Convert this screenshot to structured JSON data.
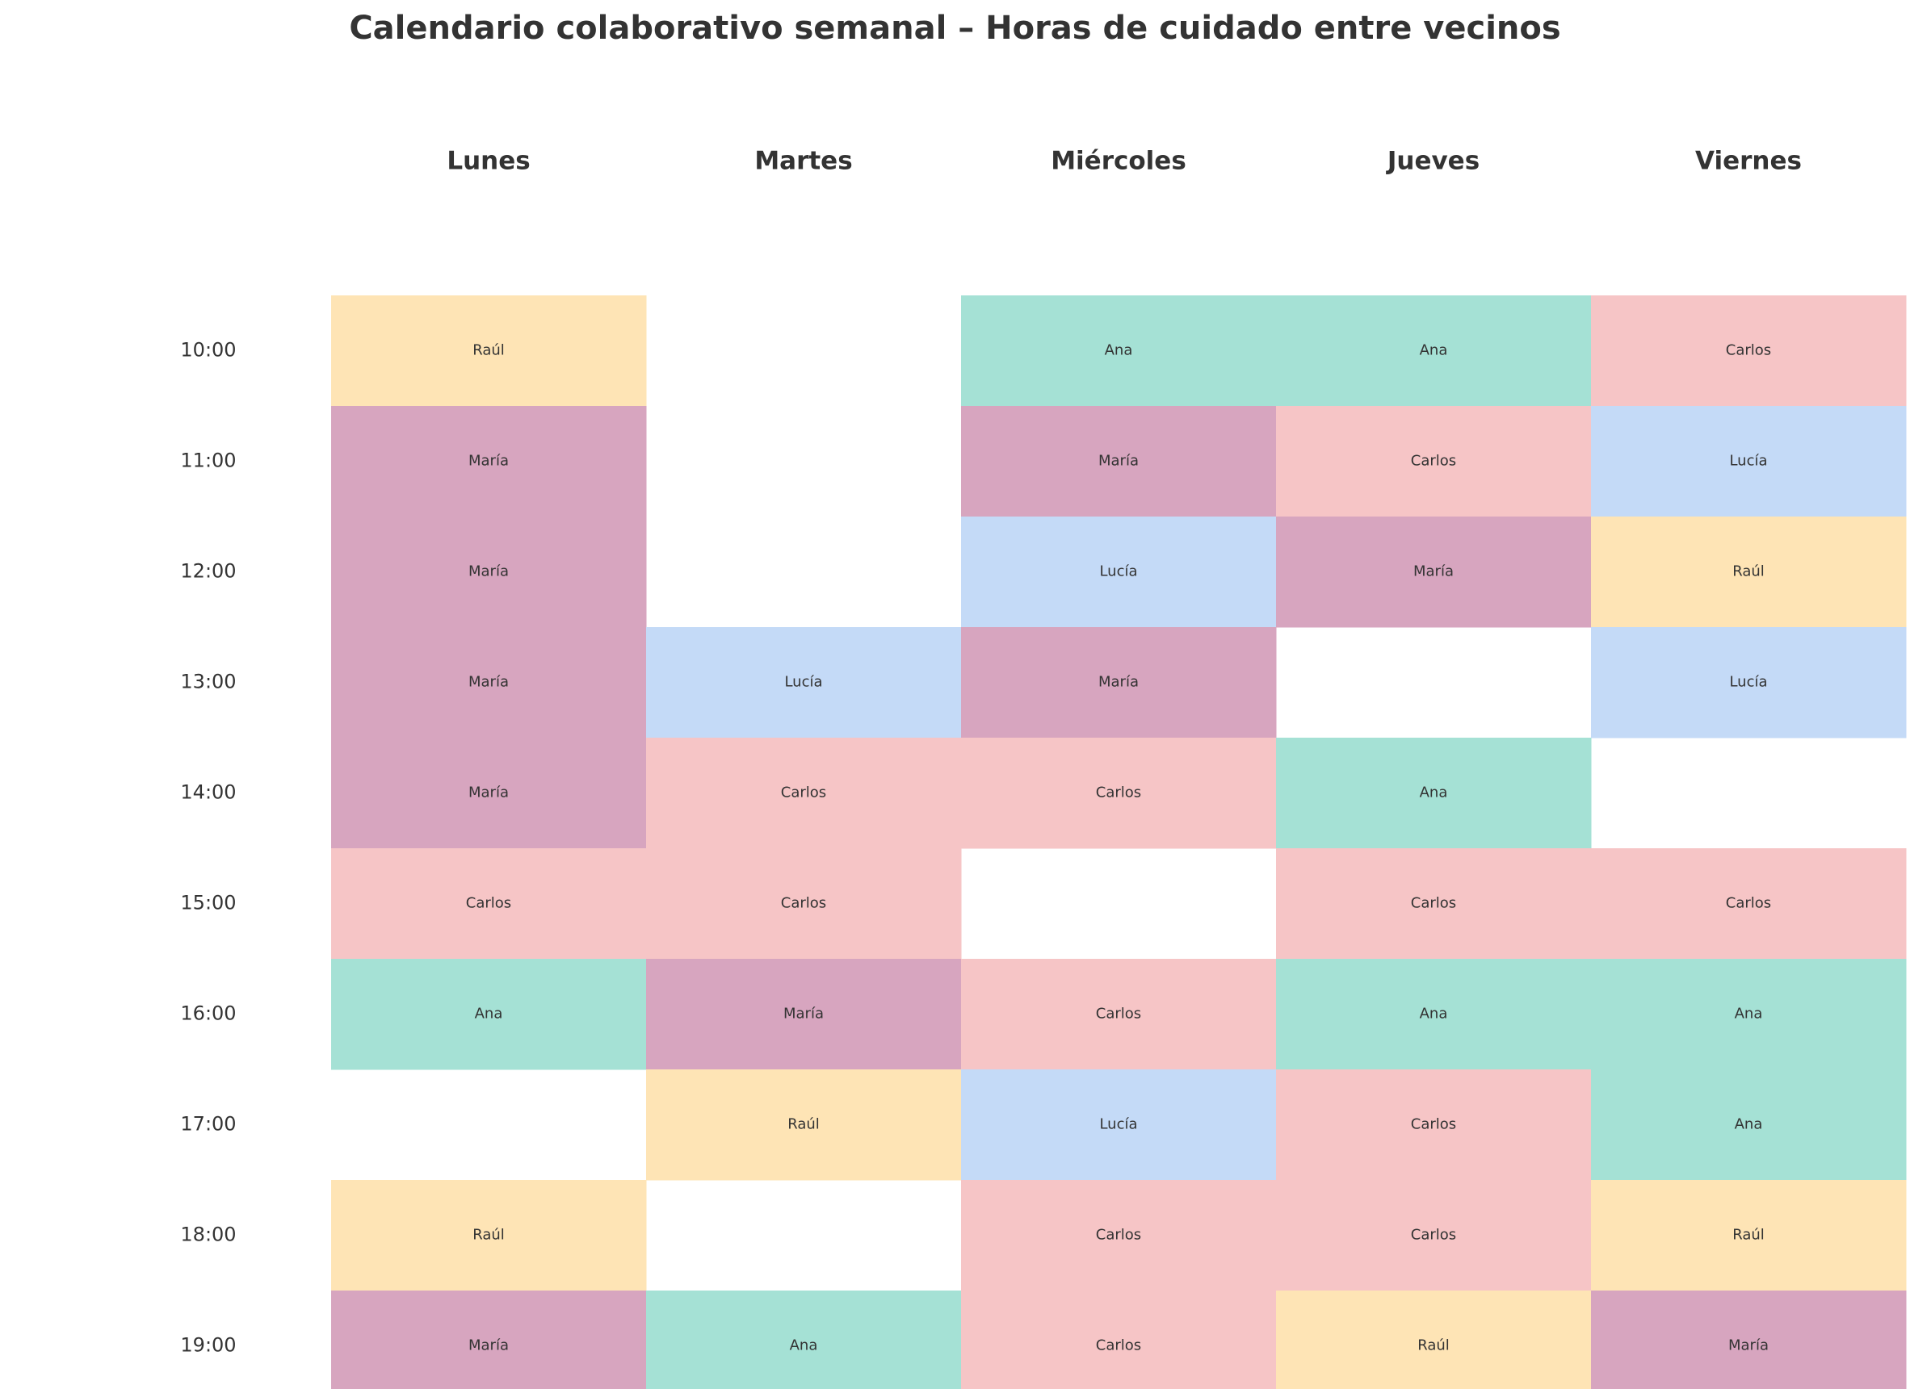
{
  "chart_data": {
    "type": "heatmap",
    "title": "Calendario colaborativo semanal – Horas de cuidado entre vecinos",
    "days": [
      "Lunes",
      "Martes",
      "Miércoles",
      "Jueves",
      "Viernes"
    ],
    "times": [
      "10:00",
      "11:00",
      "12:00",
      "13:00",
      "14:00",
      "15:00",
      "16:00",
      "17:00",
      "18:00",
      "19:00"
    ],
    "grid": [
      [
        "Raúl",
        "",
        "Ana",
        "Ana",
        "Carlos"
      ],
      [
        "María",
        "",
        "María",
        "Carlos",
        "Lucía"
      ],
      [
        "María",
        "",
        "Lucía",
        "María",
        "Raúl"
      ],
      [
        "María",
        "Lucía",
        "María",
        "",
        "Lucía"
      ],
      [
        "María",
        "Carlos",
        "Carlos",
        "Ana",
        ""
      ],
      [
        "Carlos",
        "Carlos",
        "",
        "Carlos",
        "Carlos"
      ],
      [
        "Ana",
        "María",
        "Carlos",
        "Ana",
        "Ana"
      ],
      [
        "",
        "Raúl",
        "Lucía",
        "Carlos",
        "Ana"
      ],
      [
        "Raúl",
        "",
        "Carlos",
        "Carlos",
        "Raúl"
      ],
      [
        "María",
        "Ana",
        "Carlos",
        "Raúl",
        "María"
      ]
    ],
    "colors": {
      "Raúl": "#fee4b5",
      "María": "#d7a5bf",
      "Ana": "#a5e1d5",
      "Carlos": "#f6c5c6",
      "Lucía": "#c4daf7"
    },
    "legend": "none",
    "grid_lines": false
  }
}
